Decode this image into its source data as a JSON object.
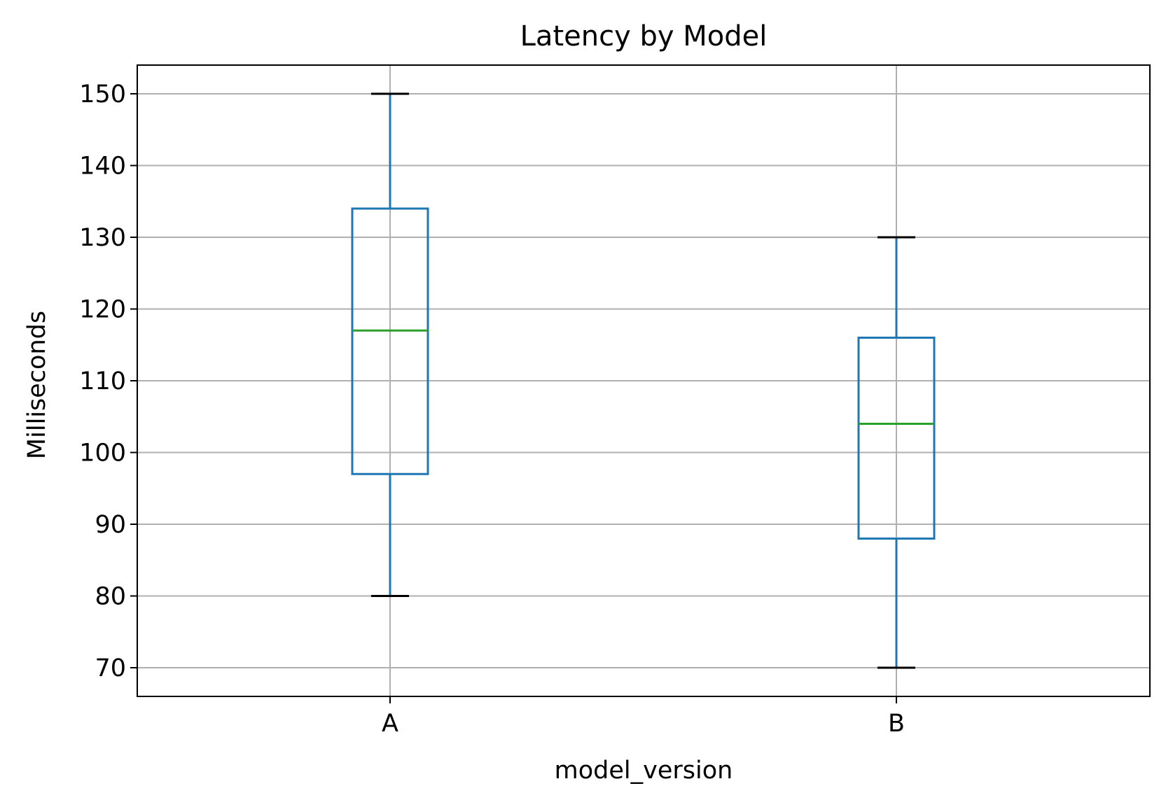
{
  "chart_data": {
    "type": "box",
    "title": "Latency by Model",
    "xlabel": "model_version",
    "ylabel": "Milliseconds",
    "categories": [
      "A",
      "B"
    ],
    "boxes": [
      {
        "category": "A",
        "whisker_low": 80,
        "q1": 97,
        "median": 117,
        "q3": 134,
        "whisker_high": 150
      },
      {
        "category": "B",
        "whisker_low": 70,
        "q1": 88,
        "median": 104,
        "q3": 116,
        "whisker_high": 130
      }
    ],
    "ylim": [
      66,
      154
    ],
    "yticks": [
      70,
      80,
      90,
      100,
      110,
      120,
      130,
      140,
      150
    ],
    "grid": true,
    "colors": {
      "box": "#1f77b4",
      "median": "#2ca02c",
      "caps": "#000000",
      "grid": "#b0b0b0",
      "axes": "#000000"
    }
  }
}
